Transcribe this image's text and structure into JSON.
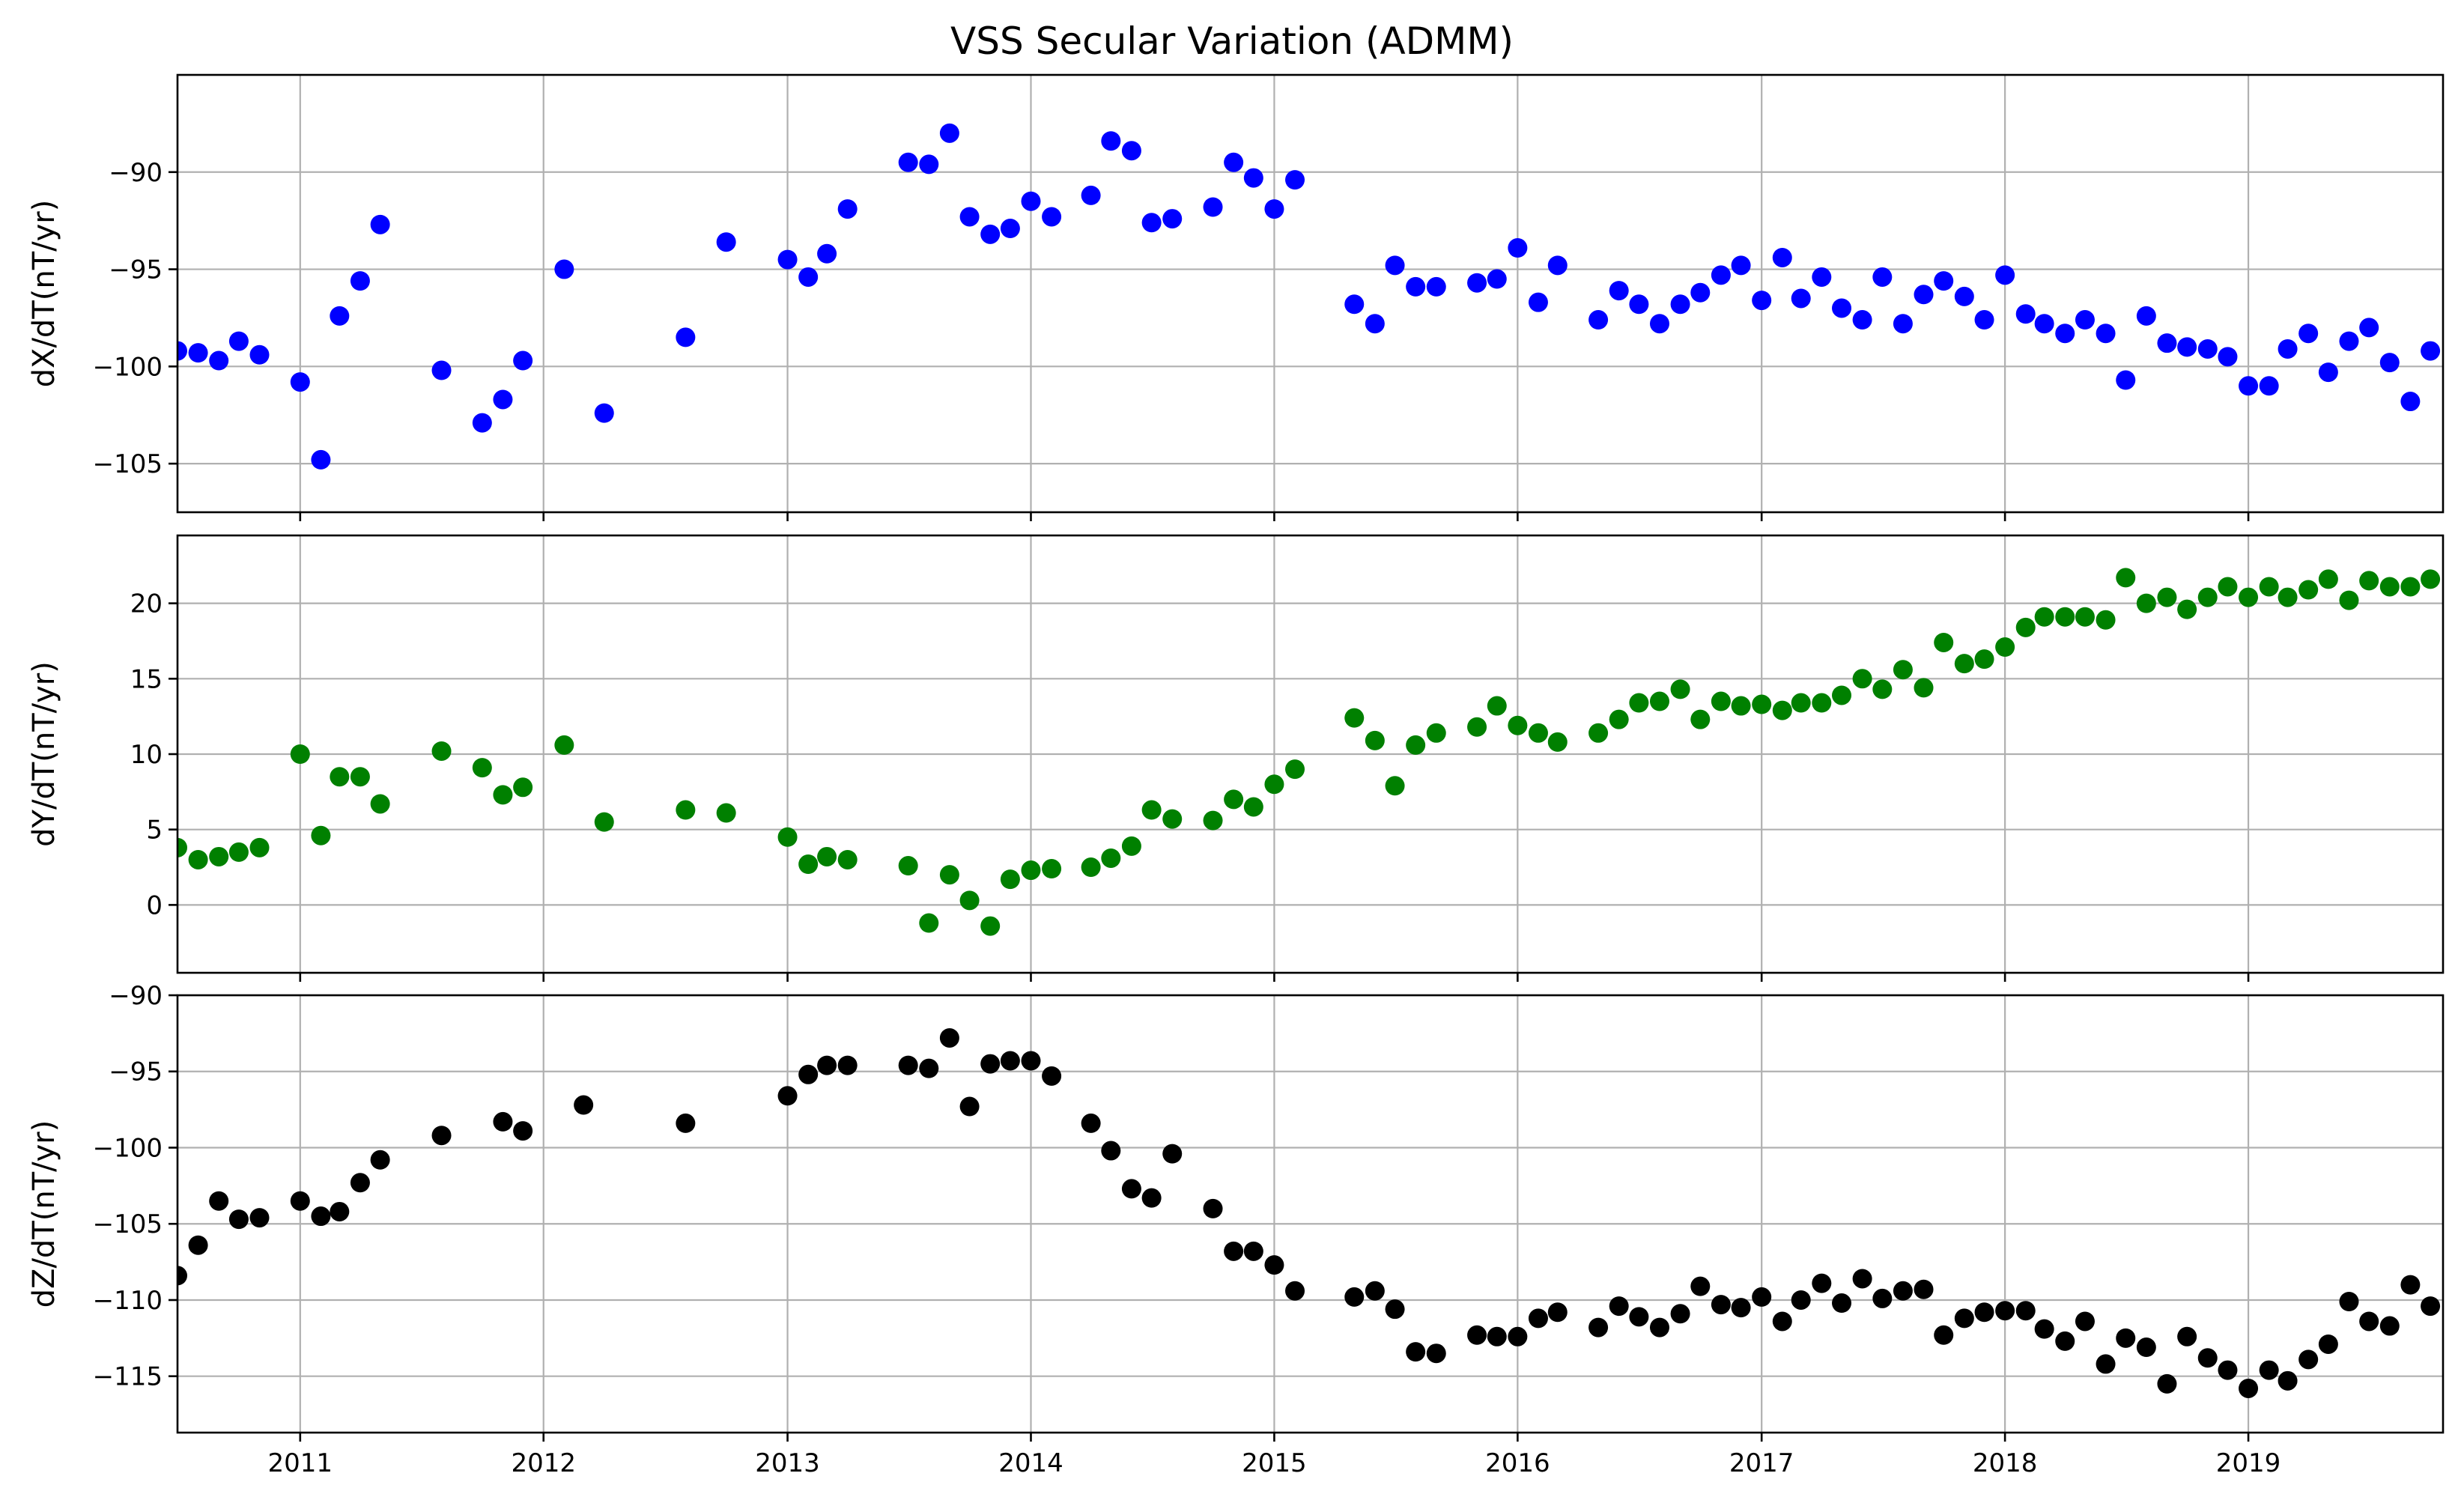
{
  "chart_data": [
    {
      "type": "scatter",
      "title": "VSS Secular Variation (ADMM)",
      "ylabel": "dX/dT(nT/yr)",
      "xlim": [
        "2010-07-01",
        "2019-10-20"
      ],
      "ylim": [
        -107.5,
        -85.0
      ],
      "yticks": [
        -90,
        -95,
        -100,
        -105
      ],
      "xticks": [
        "2011",
        "2012",
        "2013",
        "2014",
        "2015",
        "2016",
        "2017",
        "2018",
        "2019"
      ],
      "grid": true,
      "color": "#0000ff",
      "points": [
        [
          "2010-07-01",
          -99.2
        ],
        [
          "2010-08-01",
          -99.3
        ],
        [
          "2010-09-01",
          -99.7
        ],
        [
          "2010-10-01",
          -98.7
        ],
        [
          "2010-11-01",
          -99.4
        ],
        [
          "2011-01-01",
          -100.8
        ],
        [
          "2011-02-01",
          -104.8
        ],
        [
          "2011-03-01",
          -97.4
        ],
        [
          "2011-04-01",
          -95.6
        ],
        [
          "2011-05-01",
          -92.7
        ],
        [
          "2011-08-01",
          -100.2
        ],
        [
          "2011-10-01",
          -102.9
        ],
        [
          "2011-11-01",
          -101.7
        ],
        [
          "2011-12-01",
          -99.7
        ],
        [
          "2012-02-01",
          -95.0
        ],
        [
          "2012-04-01",
          -102.4
        ],
        [
          "2012-08-01",
          -98.5
        ],
        [
          "2012-10-01",
          -93.6
        ],
        [
          "2013-01-01",
          -94.5
        ],
        [
          "2013-02-01",
          -95.4
        ],
        [
          "2013-03-01",
          -94.2
        ],
        [
          "2013-04-01",
          -91.9
        ],
        [
          "2013-07-01",
          -89.5
        ],
        [
          "2013-08-01",
          -89.6
        ],
        [
          "2013-09-01",
          -88.0
        ],
        [
          "2013-10-01",
          -92.3
        ],
        [
          "2013-11-01",
          -93.2
        ],
        [
          "2013-12-01",
          -92.9
        ],
        [
          "2014-01-01",
          -91.5
        ],
        [
          "2014-02-01",
          -92.3
        ],
        [
          "2014-04-01",
          -91.2
        ],
        [
          "2014-05-01",
          -88.4
        ],
        [
          "2014-06-01",
          -88.9
        ],
        [
          "2014-07-01",
          -92.6
        ],
        [
          "2014-08-01",
          -92.4
        ],
        [
          "2014-10-01",
          -91.8
        ],
        [
          "2014-11-01",
          -89.5
        ],
        [
          "2014-12-01",
          -90.3
        ],
        [
          "2015-01-01",
          -91.9
        ],
        [
          "2015-02-01",
          -90.4
        ],
        [
          "2015-05-01",
          -96.8
        ],
        [
          "2015-06-01",
          -97.8
        ],
        [
          "2015-07-01",
          -94.8
        ],
        [
          "2015-08-01",
          -95.9
        ],
        [
          "2015-09-01",
          -95.9
        ],
        [
          "2015-11-01",
          -95.7
        ],
        [
          "2015-12-01",
          -95.5
        ],
        [
          "2016-01-01",
          -93.9
        ],
        [
          "2016-02-01",
          -96.7
        ],
        [
          "2016-03-01",
          -94.8
        ],
        [
          "2016-05-01",
          -97.6
        ],
        [
          "2016-06-01",
          -96.1
        ],
        [
          "2016-07-01",
          -96.8
        ],
        [
          "2016-08-01",
          -97.8
        ],
        [
          "2016-09-01",
          -96.8
        ],
        [
          "2016-10-01",
          -96.2
        ],
        [
          "2016-11-01",
          -95.3
        ],
        [
          "2016-12-01",
          -94.8
        ],
        [
          "2017-01-01",
          -96.6
        ],
        [
          "2017-02-01",
          -94.4
        ],
        [
          "2017-03-01",
          -96.5
        ],
        [
          "2017-04-01",
          -95.4
        ],
        [
          "2017-05-01",
          -97.0
        ],
        [
          "2017-06-01",
          -97.6
        ],
        [
          "2017-07-01",
          -95.4
        ],
        [
          "2017-08-01",
          -97.8
        ],
        [
          "2017-09-01",
          -96.3
        ],
        [
          "2017-10-01",
          -95.6
        ],
        [
          "2017-11-01",
          -96.4
        ],
        [
          "2017-12-01",
          -97.6
        ],
        [
          "2018-01-01",
          -95.3
        ],
        [
          "2018-02-01",
          -97.3
        ],
        [
          "2018-03-01",
          -97.8
        ],
        [
          "2018-04-01",
          -98.3
        ],
        [
          "2018-05-01",
          -97.6
        ],
        [
          "2018-06-01",
          -98.3
        ],
        [
          "2018-07-01",
          -100.7
        ],
        [
          "2018-08-01",
          -97.4
        ],
        [
          "2018-09-01",
          -98.8
        ],
        [
          "2018-10-01",
          -99.0
        ],
        [
          "2018-11-01",
          -99.1
        ],
        [
          "2018-12-01",
          -99.5
        ],
        [
          "2019-01-01",
          -101.0
        ],
        [
          "2019-02-01",
          -101.0
        ],
        [
          "2019-03-01",
          -99.1
        ],
        [
          "2019-04-01",
          -98.3
        ],
        [
          "2019-05-01",
          -100.3
        ],
        [
          "2019-06-01",
          -98.7
        ],
        [
          "2019-07-01",
          -98.0
        ],
        [
          "2019-08-01",
          -99.8
        ],
        [
          "2019-09-01",
          -101.8
        ],
        [
          "2019-10-01",
          -99.2
        ]
      ]
    },
    {
      "type": "scatter",
      "ylabel": "dY/dT(nT/yr)",
      "xlim": [
        "2010-07-01",
        "2019-10-20"
      ],
      "ylim": [
        -4.5,
        24.5
      ],
      "yticks": [
        20,
        15,
        10,
        5,
        0
      ],
      "xticks": [
        "2011",
        "2012",
        "2013",
        "2014",
        "2015",
        "2016",
        "2017",
        "2018",
        "2019"
      ],
      "grid": true,
      "color": "#008000",
      "points": [
        [
          "2010-07-01",
          3.8
        ],
        [
          "2010-08-01",
          3.0
        ],
        [
          "2010-09-01",
          3.2
        ],
        [
          "2010-10-01",
          3.5
        ],
        [
          "2010-11-01",
          3.8
        ],
        [
          "2011-01-01",
          10.0
        ],
        [
          "2011-02-01",
          4.6
        ],
        [
          "2011-03-01",
          8.5
        ],
        [
          "2011-04-01",
          8.5
        ],
        [
          "2011-05-01",
          6.7
        ],
        [
          "2011-08-01",
          10.2
        ],
        [
          "2011-10-01",
          9.1
        ],
        [
          "2011-11-01",
          7.3
        ],
        [
          "2011-12-01",
          7.8
        ],
        [
          "2012-02-01",
          10.6
        ],
        [
          "2012-04-01",
          5.5
        ],
        [
          "2012-08-01",
          6.3
        ],
        [
          "2012-10-01",
          6.1
        ],
        [
          "2013-01-01",
          4.5
        ],
        [
          "2013-02-01",
          2.7
        ],
        [
          "2013-03-01",
          3.2
        ],
        [
          "2013-04-01",
          3.0
        ],
        [
          "2013-07-01",
          2.6
        ],
        [
          "2013-08-01",
          -1.2
        ],
        [
          "2013-09-01",
          2.0
        ],
        [
          "2013-10-01",
          0.3
        ],
        [
          "2013-11-01",
          -1.4
        ],
        [
          "2013-12-01",
          1.7
        ],
        [
          "2014-01-01",
          2.3
        ],
        [
          "2014-02-01",
          2.4
        ],
        [
          "2014-04-01",
          2.5
        ],
        [
          "2014-05-01",
          3.1
        ],
        [
          "2014-06-01",
          3.9
        ],
        [
          "2014-07-01",
          6.3
        ],
        [
          "2014-08-01",
          5.7
        ],
        [
          "2014-10-01",
          5.6
        ],
        [
          "2014-11-01",
          7.0
        ],
        [
          "2014-12-01",
          6.5
        ],
        [
          "2015-01-01",
          8.0
        ],
        [
          "2015-02-01",
          9.0
        ],
        [
          "2015-05-01",
          12.4
        ],
        [
          "2015-06-01",
          10.9
        ],
        [
          "2015-07-01",
          7.9
        ],
        [
          "2015-08-01",
          10.6
        ],
        [
          "2015-09-01",
          11.4
        ],
        [
          "2015-11-01",
          11.8
        ],
        [
          "2015-12-01",
          13.2
        ],
        [
          "2016-01-01",
          11.9
        ],
        [
          "2016-02-01",
          11.4
        ],
        [
          "2016-03-01",
          10.8
        ],
        [
          "2016-05-01",
          11.4
        ],
        [
          "2016-06-01",
          12.3
        ],
        [
          "2016-07-01",
          13.4
        ],
        [
          "2016-08-01",
          13.5
        ],
        [
          "2016-09-01",
          14.3
        ],
        [
          "2016-10-01",
          12.3
        ],
        [
          "2016-11-01",
          13.5
        ],
        [
          "2016-12-01",
          13.2
        ],
        [
          "2017-01-01",
          13.3
        ],
        [
          "2017-02-01",
          12.9
        ],
        [
          "2017-03-01",
          13.4
        ],
        [
          "2017-04-01",
          13.4
        ],
        [
          "2017-05-01",
          13.9
        ],
        [
          "2017-06-01",
          15.0
        ],
        [
          "2017-07-01",
          14.3
        ],
        [
          "2017-08-01",
          15.6
        ],
        [
          "2017-09-01",
          14.4
        ],
        [
          "2017-10-01",
          17.4
        ],
        [
          "2017-11-01",
          16.0
        ],
        [
          "2017-12-01",
          16.3
        ],
        [
          "2018-01-01",
          17.1
        ],
        [
          "2018-02-01",
          18.4
        ],
        [
          "2018-03-01",
          19.1
        ],
        [
          "2018-04-01",
          19.1
        ],
        [
          "2018-05-01",
          19.1
        ],
        [
          "2018-06-01",
          18.9
        ],
        [
          "2018-07-01",
          21.7
        ],
        [
          "2018-08-01",
          20.0
        ],
        [
          "2018-09-01",
          20.4
        ],
        [
          "2018-10-01",
          19.6
        ],
        [
          "2018-11-01",
          20.4
        ],
        [
          "2018-12-01",
          21.1
        ],
        [
          "2019-01-01",
          20.4
        ],
        [
          "2019-02-01",
          21.1
        ],
        [
          "2019-03-01",
          20.4
        ],
        [
          "2019-04-01",
          20.9
        ],
        [
          "2019-05-01",
          21.6
        ],
        [
          "2019-06-01",
          20.2
        ],
        [
          "2019-07-01",
          21.5
        ],
        [
          "2019-08-01",
          21.1
        ],
        [
          "2019-09-01",
          21.1
        ],
        [
          "2019-10-01",
          21.6
        ]
      ]
    },
    {
      "type": "scatter",
      "ylabel": "dZ/dT(nT/yr)",
      "xlim": [
        "2010-07-01",
        "2019-10-20"
      ],
      "ylim": [
        -118.7,
        -90.0
      ],
      "yticks": [
        -90,
        -95,
        -100,
        -105,
        -110,
        -115
      ],
      "xticks": [
        "2011",
        "2012",
        "2013",
        "2014",
        "2015",
        "2016",
        "2017",
        "2018",
        "2019"
      ],
      "grid": true,
      "color": "#000000",
      "points": [
        [
          "2010-07-01",
          -108.4
        ],
        [
          "2010-08-01",
          -106.4
        ],
        [
          "2010-09-01",
          -103.5
        ],
        [
          "2010-10-01",
          -104.7
        ],
        [
          "2010-11-01",
          -104.6
        ],
        [
          "2011-01-01",
          -103.5
        ],
        [
          "2011-02-01",
          -104.5
        ],
        [
          "2011-03-01",
          -104.2
        ],
        [
          "2011-04-01",
          -102.3
        ],
        [
          "2011-05-01",
          -100.8
        ],
        [
          "2011-08-01",
          -99.2
        ],
        [
          "2011-11-01",
          -98.3
        ],
        [
          "2011-12-01",
          -98.9
        ],
        [
          "2012-03-01",
          -97.2
        ],
        [
          "2012-08-01",
          -98.4
        ],
        [
          "2013-01-01",
          -96.6
        ],
        [
          "2013-02-01",
          -95.2
        ],
        [
          "2013-03-01",
          -94.6
        ],
        [
          "2013-04-01",
          -94.6
        ],
        [
          "2013-07-01",
          -94.6
        ],
        [
          "2013-08-01",
          -94.8
        ],
        [
          "2013-09-01",
          -92.8
        ],
        [
          "2013-10-01",
          -97.3
        ],
        [
          "2013-11-01",
          -94.5
        ],
        [
          "2013-12-01",
          -94.3
        ],
        [
          "2014-01-01",
          -94.3
        ],
        [
          "2014-02-01",
          -95.3
        ],
        [
          "2014-04-01",
          -98.4
        ],
        [
          "2014-05-01",
          -100.2
        ],
        [
          "2014-06-01",
          -102.7
        ],
        [
          "2014-07-01",
          -103.3
        ],
        [
          "2014-08-01",
          -100.4
        ],
        [
          "2014-10-01",
          -104.0
        ],
        [
          "2014-11-01",
          -106.8
        ],
        [
          "2014-12-01",
          -106.8
        ],
        [
          "2015-01-01",
          -107.7
        ],
        [
          "2015-02-01",
          -109.4
        ],
        [
          "2015-05-01",
          -109.8
        ],
        [
          "2015-06-01",
          -109.4
        ],
        [
          "2015-07-01",
          -110.6
        ],
        [
          "2015-08-01",
          -113.4
        ],
        [
          "2015-09-01",
          -113.5
        ],
        [
          "2015-11-01",
          -112.3
        ],
        [
          "2015-12-01",
          -112.4
        ],
        [
          "2016-01-01",
          -112.4
        ],
        [
          "2016-02-01",
          -111.2
        ],
        [
          "2016-03-01",
          -110.8
        ],
        [
          "2016-05-01",
          -111.8
        ],
        [
          "2016-06-01",
          -110.4
        ],
        [
          "2016-07-01",
          -111.1
        ],
        [
          "2016-08-01",
          -111.8
        ],
        [
          "2016-09-01",
          -110.9
        ],
        [
          "2016-10-01",
          -109.1
        ],
        [
          "2016-11-01",
          -110.3
        ],
        [
          "2016-12-01",
          -110.5
        ],
        [
          "2017-01-01",
          -109.8
        ],
        [
          "2017-02-01",
          -111.4
        ],
        [
          "2017-03-01",
          -110.0
        ],
        [
          "2017-04-01",
          -108.9
        ],
        [
          "2017-05-01",
          -110.2
        ],
        [
          "2017-06-01",
          -108.6
        ],
        [
          "2017-07-01",
          -109.9
        ],
        [
          "2017-08-01",
          -109.4
        ],
        [
          "2017-09-01",
          -109.3
        ],
        [
          "2017-10-01",
          -112.3
        ],
        [
          "2017-11-01",
          -111.2
        ],
        [
          "2017-12-01",
          -110.8
        ],
        [
          "2018-01-01",
          -110.7
        ],
        [
          "2018-02-01",
          -110.7
        ],
        [
          "2018-03-01",
          -111.9
        ],
        [
          "2018-04-01",
          -112.7
        ],
        [
          "2018-05-01",
          -111.4
        ],
        [
          "2018-06-01",
          -114.2
        ],
        [
          "2018-07-01",
          -112.5
        ],
        [
          "2018-08-01",
          -113.1
        ],
        [
          "2018-09-01",
          -115.5
        ],
        [
          "2018-10-01",
          -112.4
        ],
        [
          "2018-11-01",
          -113.8
        ],
        [
          "2018-12-01",
          -114.6
        ],
        [
          "2019-01-01",
          -115.8
        ],
        [
          "2019-02-01",
          -114.6
        ],
        [
          "2019-03-01",
          -115.3
        ],
        [
          "2019-04-01",
          -113.9
        ],
        [
          "2019-05-01",
          -112.9
        ],
        [
          "2019-06-01",
          -110.1
        ],
        [
          "2019-07-01",
          -111.4
        ],
        [
          "2019-08-01",
          -111.7
        ],
        [
          "2019-09-01",
          -109.0
        ],
        [
          "2019-10-01",
          -110.4
        ]
      ]
    }
  ]
}
